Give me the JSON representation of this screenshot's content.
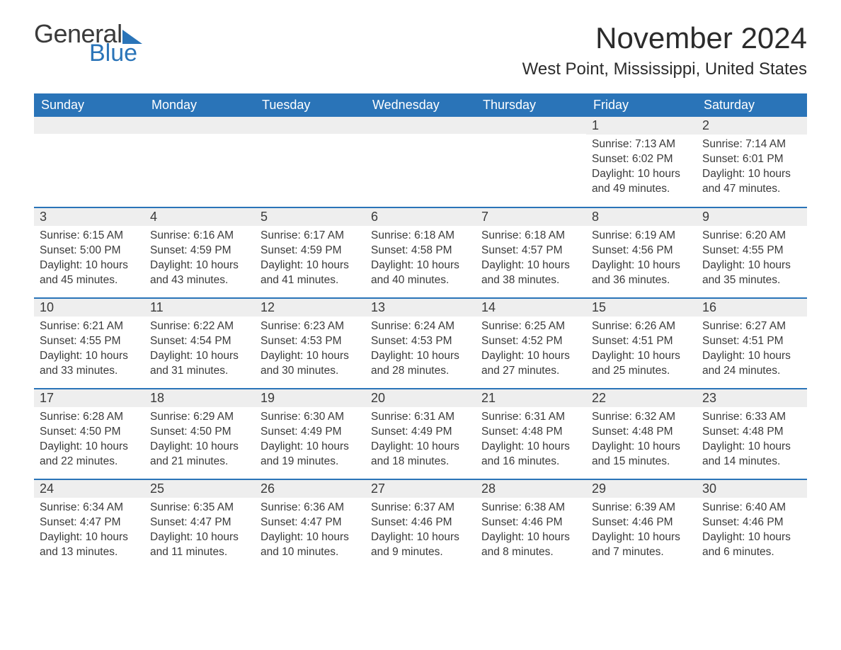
{
  "brand": {
    "word1": "General",
    "word2": "Blue",
    "accent": "#2a74b8"
  },
  "title": "November 2024",
  "location": "West Point, Mississippi, United States",
  "columns": [
    "Sunday",
    "Monday",
    "Tuesday",
    "Wednesday",
    "Thursday",
    "Friday",
    "Saturday"
  ],
  "layout": {
    "startDayIndex": 5,
    "daysInMonth": 30,
    "headerBg": "#2a74b8",
    "headerFg": "#ffffff",
    "dayStripeBg": "#eeeeee",
    "ruleColor": "#2a74b8",
    "bodyFontSize": 15.5,
    "headerFontSize": 18,
    "titleFontSize": 42,
    "locationFontSize": 24
  },
  "days": {
    "1": {
      "sunrise": "7:13 AM",
      "sunset": "6:02 PM",
      "daylight": "10 hours and 49 minutes."
    },
    "2": {
      "sunrise": "7:14 AM",
      "sunset": "6:01 PM",
      "daylight": "10 hours and 47 minutes."
    },
    "3": {
      "sunrise": "6:15 AM",
      "sunset": "5:00 PM",
      "daylight": "10 hours and 45 minutes."
    },
    "4": {
      "sunrise": "6:16 AM",
      "sunset": "4:59 PM",
      "daylight": "10 hours and 43 minutes."
    },
    "5": {
      "sunrise": "6:17 AM",
      "sunset": "4:59 PM",
      "daylight": "10 hours and 41 minutes."
    },
    "6": {
      "sunrise": "6:18 AM",
      "sunset": "4:58 PM",
      "daylight": "10 hours and 40 minutes."
    },
    "7": {
      "sunrise": "6:18 AM",
      "sunset": "4:57 PM",
      "daylight": "10 hours and 38 minutes."
    },
    "8": {
      "sunrise": "6:19 AM",
      "sunset": "4:56 PM",
      "daylight": "10 hours and 36 minutes."
    },
    "9": {
      "sunrise": "6:20 AM",
      "sunset": "4:55 PM",
      "daylight": "10 hours and 35 minutes."
    },
    "10": {
      "sunrise": "6:21 AM",
      "sunset": "4:55 PM",
      "daylight": "10 hours and 33 minutes."
    },
    "11": {
      "sunrise": "6:22 AM",
      "sunset": "4:54 PM",
      "daylight": "10 hours and 31 minutes."
    },
    "12": {
      "sunrise": "6:23 AM",
      "sunset": "4:53 PM",
      "daylight": "10 hours and 30 minutes."
    },
    "13": {
      "sunrise": "6:24 AM",
      "sunset": "4:53 PM",
      "daylight": "10 hours and 28 minutes."
    },
    "14": {
      "sunrise": "6:25 AM",
      "sunset": "4:52 PM",
      "daylight": "10 hours and 27 minutes."
    },
    "15": {
      "sunrise": "6:26 AM",
      "sunset": "4:51 PM",
      "daylight": "10 hours and 25 minutes."
    },
    "16": {
      "sunrise": "6:27 AM",
      "sunset": "4:51 PM",
      "daylight": "10 hours and 24 minutes."
    },
    "17": {
      "sunrise": "6:28 AM",
      "sunset": "4:50 PM",
      "daylight": "10 hours and 22 minutes."
    },
    "18": {
      "sunrise": "6:29 AM",
      "sunset": "4:50 PM",
      "daylight": "10 hours and 21 minutes."
    },
    "19": {
      "sunrise": "6:30 AM",
      "sunset": "4:49 PM",
      "daylight": "10 hours and 19 minutes."
    },
    "20": {
      "sunrise": "6:31 AM",
      "sunset": "4:49 PM",
      "daylight": "10 hours and 18 minutes."
    },
    "21": {
      "sunrise": "6:31 AM",
      "sunset": "4:48 PM",
      "daylight": "10 hours and 16 minutes."
    },
    "22": {
      "sunrise": "6:32 AM",
      "sunset": "4:48 PM",
      "daylight": "10 hours and 15 minutes."
    },
    "23": {
      "sunrise": "6:33 AM",
      "sunset": "4:48 PM",
      "daylight": "10 hours and 14 minutes."
    },
    "24": {
      "sunrise": "6:34 AM",
      "sunset": "4:47 PM",
      "daylight": "10 hours and 13 minutes."
    },
    "25": {
      "sunrise": "6:35 AM",
      "sunset": "4:47 PM",
      "daylight": "10 hours and 11 minutes."
    },
    "26": {
      "sunrise": "6:36 AM",
      "sunset": "4:47 PM",
      "daylight": "10 hours and 10 minutes."
    },
    "27": {
      "sunrise": "6:37 AM",
      "sunset": "4:46 PM",
      "daylight": "10 hours and 9 minutes."
    },
    "28": {
      "sunrise": "6:38 AM",
      "sunset": "4:46 PM",
      "daylight": "10 hours and 8 minutes."
    },
    "29": {
      "sunrise": "6:39 AM",
      "sunset": "4:46 PM",
      "daylight": "10 hours and 7 minutes."
    },
    "30": {
      "sunrise": "6:40 AM",
      "sunset": "4:46 PM",
      "daylight": "10 hours and 6 minutes."
    }
  },
  "labels": {
    "sunrise": "Sunrise: ",
    "sunset": "Sunset: ",
    "daylight": "Daylight: "
  }
}
